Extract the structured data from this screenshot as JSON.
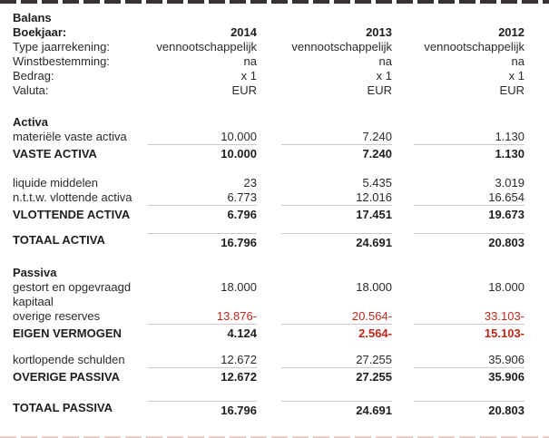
{
  "title": "Balans",
  "colors": {
    "negative_red": "#c0281c",
    "rule_gray": "#c9c9c9",
    "text": "#2d2a26",
    "top_border_dash": "#37322f",
    "bottom_border_dash": "#edccc7"
  },
  "years": [
    "2014",
    "2013",
    "2012"
  ],
  "rows": [
    {
      "label": "Balans"
    },
    {
      "label": "Boekjaar:",
      "v1": "2014",
      "v2": "2013",
      "v3": "2012"
    },
    {
      "label": "Type jaarrekening:",
      "v1": "vennootschappelijk",
      "v2": "vennootschappelijk",
      "v3": "vennootschappelijk"
    },
    {
      "label": "Winstbestemming:",
      "v1": "na",
      "v2": "na",
      "v3": "na"
    },
    {
      "label": "Bedrag:",
      "v1": "x 1",
      "v2": "x 1",
      "v3": "x 1"
    },
    {
      "label": "Valuta:",
      "v1": "EUR",
      "v2": "EUR",
      "v3": "EUR"
    },
    {
      "label": "Activa"
    },
    {
      "label": "materiële vaste activa",
      "v1": "10.000",
      "v2": "7.240",
      "v3": "1.130"
    },
    {
      "label": "VASTE ACTIVA",
      "v1": "10.000",
      "v2": "7.240",
      "v3": "1.130"
    },
    {
      "label": "liquide middelen",
      "v1": "23",
      "v2": "5.435",
      "v3": "3.019"
    },
    {
      "label": "n.t.t.w. vlottende activa",
      "v1": "6.773",
      "v2": "12.016",
      "v3": "16.654"
    },
    {
      "label": "VLOTTENDE ACTIVA",
      "v1": "6.796",
      "v2": "17.451",
      "v3": "19.673"
    },
    {
      "label": "TOTAAL ACTIVA",
      "v1": "16.796",
      "v2": "24.691",
      "v3": "20.803"
    },
    {
      "label": "Passiva"
    },
    {
      "label": "gestort en opgevraagd kapitaal",
      "v1": "18.000",
      "v2": "18.000",
      "v3": "18.000"
    },
    {
      "label": "overige reserves",
      "v1": "13.876-",
      "v2": "20.564-",
      "v3": "33.103-"
    },
    {
      "label": "EIGEN VERMOGEN",
      "v1": "4.124",
      "v2": "2.564-",
      "v3": "15.103-"
    },
    {
      "label": "kortlopende schulden",
      "v1": "12.672",
      "v2": "27.255",
      "v3": "35.906"
    },
    {
      "label": "OVERIGE PASSIVA",
      "v1": "12.672",
      "v2": "27.255",
      "v3": "35.906"
    },
    {
      "label": "TOTAAL PASSIVA",
      "v1": "16.796",
      "v2": "24.691",
      "v3": "20.803"
    }
  ]
}
